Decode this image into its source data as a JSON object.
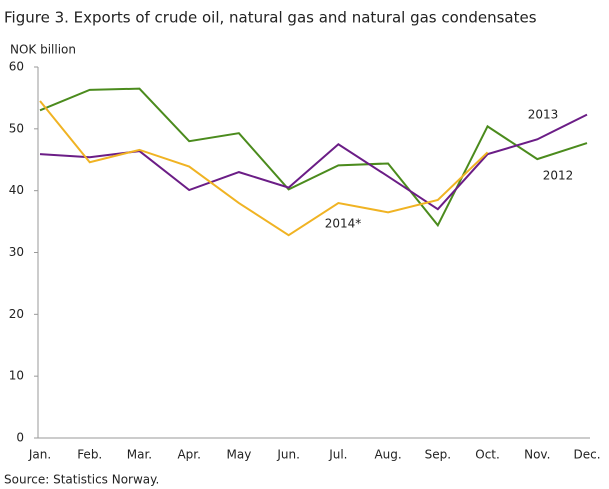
{
  "chart_data": {
    "type": "line",
    "title": "Figure 3. Exports of crude oil, natural gas and natural gas condensates",
    "y_axis_label": "NOK billion",
    "source": "Source: Statistics Norway.",
    "categories": [
      "Jan.",
      "Feb.",
      "Mar.",
      "Apr.",
      "May",
      "Jun.",
      "Jul.",
      "Aug.",
      "Sep.",
      "Oct.",
      "Nov.",
      "Dec."
    ],
    "series": [
      {
        "name": "2012",
        "color": "#4b8b1d",
        "values": [
          53,
          56.3,
          56.5,
          48,
          49.3,
          40.2,
          44.1,
          44.4,
          34.4,
          50.4,
          45.1,
          47.7
        ]
      },
      {
        "name": "2013",
        "color": "#6b1d86",
        "values": [
          45.9,
          45.4,
          46.4,
          40.1,
          43,
          40.5,
          47.5,
          42.3,
          37,
          45.9,
          48.3,
          52.3
        ]
      },
      {
        "name": "2014*",
        "color": "#f0b323",
        "values": [
          54.5,
          44.6,
          46.6,
          43.9,
          38,
          32.8,
          38,
          36.5,
          38.5,
          46.2,
          null,
          null
        ]
      }
    ],
    "ylim": [
      0,
      60
    ],
    "yticks": [
      0,
      10,
      20,
      30,
      40,
      50,
      60
    ],
    "grid": false
  }
}
